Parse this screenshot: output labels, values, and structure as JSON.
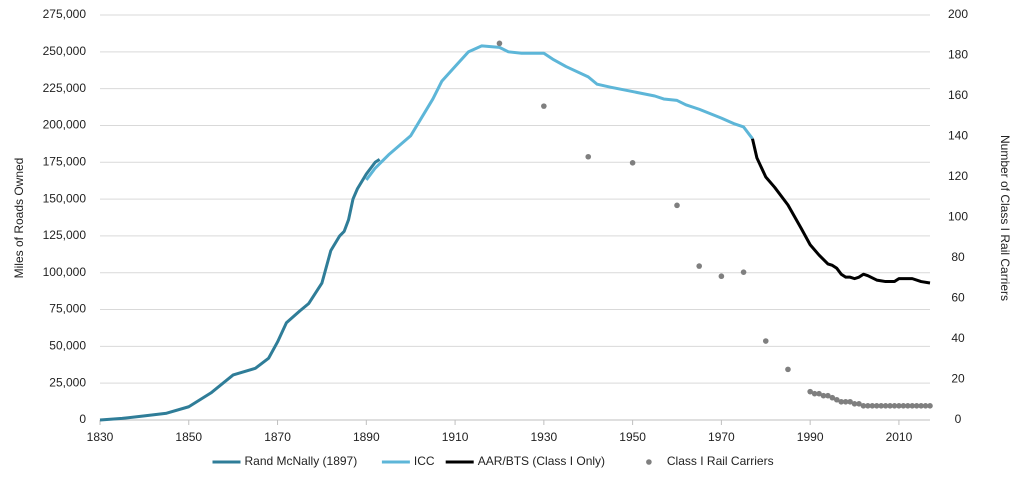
{
  "chart_data": {
    "type": "line",
    "y_label": "Miles of Roads Owned",
    "y2_label": "Number of Class I Rail Carriers",
    "xlim": [
      1830,
      2017
    ],
    "xticks": [
      1830,
      1850,
      1870,
      1890,
      1910,
      1930,
      1950,
      1970,
      1990,
      2010
    ],
    "ylim": [
      0,
      275000
    ],
    "yticks": [
      0,
      {
        "value": 25000,
        "label": "25,000"
      },
      {
        "value": 50000,
        "label": "50,000"
      },
      {
        "value": 75000,
        "label": "75,000"
      },
      {
        "value": 100000,
        "label": "100,000"
      },
      {
        "value": 125000,
        "label": "125,000"
      },
      {
        "value": 150000,
        "label": "150,000"
      },
      {
        "value": 175000,
        "label": "175,000"
      },
      {
        "value": 200000,
        "label": "200,000"
      },
      {
        "value": 225000,
        "label": "225,000"
      },
      {
        "value": 250000,
        "label": "250,000"
      },
      {
        "value": 275000,
        "label": "275,000"
      }
    ],
    "y2lim": [
      0,
      200
    ],
    "y2ticks": [
      0,
      20,
      40,
      60,
      80,
      100,
      120,
      140,
      160,
      180,
      200
    ],
    "grid": true,
    "legend": "bottom",
    "series": [
      {
        "name": "Rand McNally (1897)",
        "color": "#2f7d98",
        "kind": "line",
        "x": [
          1830,
          1835,
          1840,
          1845,
          1850,
          1855,
          1860,
          1865,
          1868,
          1870,
          1872,
          1875,
          1877,
          1880,
          1882,
          1884,
          1885,
          1886,
          1887,
          1888,
          1890,
          1892,
          1893
        ],
        "values": [
          0,
          1100,
          2800,
          4600,
          9000,
          18400,
          30600,
          35100,
          42000,
          53000,
          66000,
          74000,
          79000,
          93000,
          115000,
          125000,
          128000,
          136000,
          150000,
          157000,
          167000,
          175000,
          177000
        ]
      },
      {
        "name": "ICC",
        "color": "#5db6d8",
        "kind": "line",
        "x": [
          1890,
          1892,
          1895,
          1900,
          1905,
          1907,
          1910,
          1913,
          1916,
          1920,
          1922,
          1925,
          1930,
          1932,
          1935,
          1940,
          1942,
          1945,
          1950,
          1955,
          1957,
          1960,
          1962,
          1965,
          1970,
          1973,
          1975,
          1977
        ],
        "values": [
          163000,
          171000,
          180000,
          193000,
          218000,
          230000,
          240000,
          250000,
          254000,
          253000,
          250000,
          249000,
          249000,
          245000,
          240000,
          233000,
          228000,
          226000,
          223000,
          220000,
          218000,
          217000,
          214000,
          211000,
          205000,
          201000,
          199000,
          191000
        ]
      },
      {
        "name": "AAR/BTS (Class I Only)",
        "color": "#000000",
        "kind": "line",
        "x": [
          1977,
          1978,
          1980,
          1982,
          1985,
          1988,
          1990,
          1992,
          1994,
          1995,
          1996,
          1997,
          1998,
          1999,
          2000,
          2001,
          2002,
          2003,
          2005,
          2007,
          2009,
          2010,
          2012,
          2013,
          2015,
          2017
        ],
        "values": [
          191000,
          178000,
          165000,
          158000,
          146000,
          130000,
          119000,
          112000,
          106000,
          105000,
          103000,
          99000,
          97000,
          97000,
          96000,
          97000,
          99000,
          98000,
          95000,
          94000,
          94000,
          96000,
          96000,
          96000,
          94000,
          93000
        ]
      },
      {
        "name": "Class I Rail Carriers",
        "color": "#7f7f7f",
        "kind": "scatter",
        "axis": "y2",
        "x": [
          1920,
          1930,
          1940,
          1950,
          1960,
          1965,
          1970,
          1975,
          1980,
          1985,
          1990,
          1991,
          1992,
          1993,
          1994,
          1995,
          1996,
          1997,
          1998,
          1999,
          2000,
          2001,
          2002,
          2003,
          2004,
          2005,
          2006,
          2007,
          2008,
          2009,
          2010,
          2011,
          2012,
          2013,
          2014,
          2015,
          2016,
          2017
        ],
        "values": [
          186,
          155,
          130,
          127,
          106,
          76,
          71,
          73,
          39,
          25,
          14,
          13,
          13,
          12,
          12,
          11,
          10,
          9,
          9,
          9,
          8,
          8,
          7,
          7,
          7,
          7,
          7,
          7,
          7,
          7,
          7,
          7,
          7,
          7,
          7,
          7,
          7,
          7
        ]
      }
    ]
  }
}
